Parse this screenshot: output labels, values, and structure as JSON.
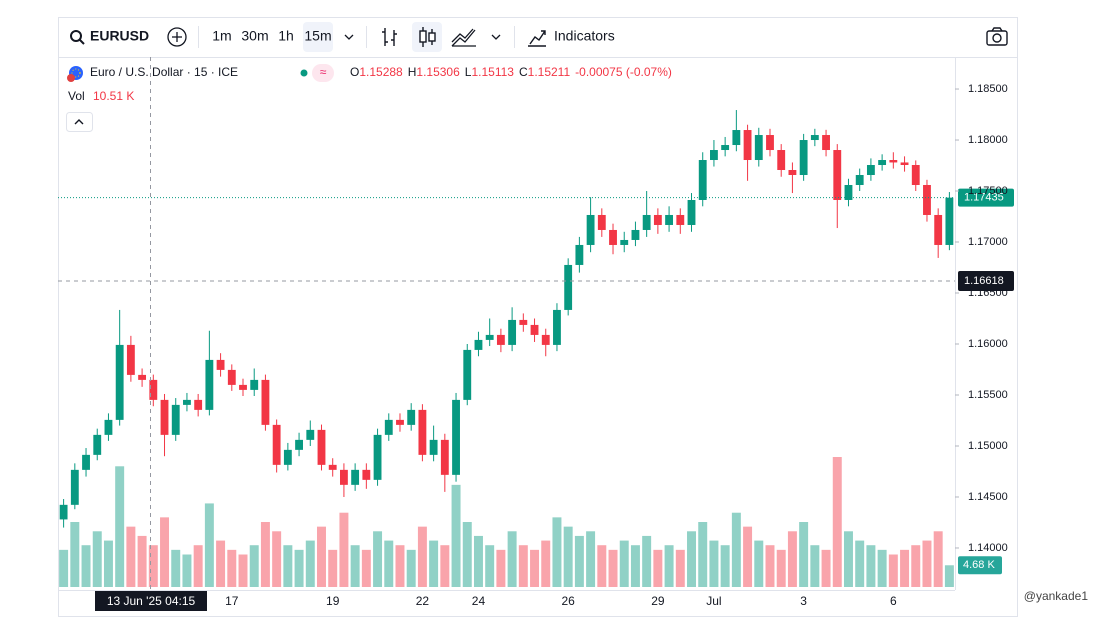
{
  "toolbar": {
    "symbol": "EURUSD",
    "intervals": [
      "1m",
      "30m",
      "1h",
      "15m"
    ],
    "selected_interval": 3,
    "indicators": "Indicators"
  },
  "legend": {
    "title": "Euro / U.S. Dollar · 15 · ICE",
    "ohlc": [
      {
        "label": "O",
        "value": "1.15288"
      },
      {
        "label": "H",
        "value": "1.15306"
      },
      {
        "label": "L",
        "value": "1.15113"
      },
      {
        "label": "C",
        "value": "1.15211"
      }
    ],
    "change": "-0.00075 (-0.07%)",
    "vol_label": "Vol",
    "vol_value": "10.51 K"
  },
  "watermark": "@yankade1",
  "chart_data": {
    "type": "candlestick",
    "up_color": "#089981",
    "down_color": "#f23645",
    "categories": [
      null,
      null,
      null,
      null,
      null,
      null,
      null,
      null,
      null,
      null,
      null,
      null,
      null,
      null,
      null,
      "17",
      null,
      null,
      null,
      null,
      null,
      null,
      null,
      null,
      "19",
      null,
      null,
      null,
      null,
      null,
      null,
      null,
      "22",
      null,
      null,
      null,
      null,
      "24",
      null,
      null,
      null,
      null,
      null,
      null,
      null,
      "26",
      null,
      null,
      null,
      null,
      null,
      null,
      null,
      "29",
      null,
      null,
      null,
      null,
      "Jul",
      null,
      null,
      null,
      null,
      null,
      null,
      null,
      "3",
      null,
      null,
      null,
      null,
      null,
      null,
      null,
      "6",
      null,
      null,
      null,
      null,
      null
    ],
    "open": [
      1.1428,
      1.14423,
      1.14766,
      1.14913,
      1.15109,
      1.15256,
      1.15991,
      1.15697,
      1.15648,
      1.15452,
      1.15109,
      1.15403,
      1.15452,
      1.15354,
      1.15844,
      1.15746,
      1.15599,
      1.1555,
      1.15648,
      1.15207,
      1.14815,
      1.14962,
      1.1506,
      1.15158,
      1.14815,
      1.14766,
      1.14619,
      1.14766,
      1.14668,
      1.15109,
      1.15256,
      1.15207,
      1.15354,
      1.14913,
      1.1506,
      1.14717,
      1.15452,
      1.15942,
      1.1604,
      1.16089,
      1.15991,
      1.16236,
      1.16187,
      1.16089,
      1.15991,
      1.16334,
      1.16775,
      1.16971,
      1.17265,
      1.17118,
      1.16971,
      1.1702,
      1.17118,
      1.17265,
      1.17167,
      1.17265,
      1.17167,
      1.17412,
      1.17804,
      1.17902,
      1.17951,
      1.18098,
      1.17804,
      1.18049,
      1.17902,
      1.17706,
      1.17657,
      1.18,
      1.18049,
      1.17902,
      1.17412,
      1.17559,
      1.17657,
      1.17755,
      1.17804,
      1.1778,
      1.17755,
      1.17559,
      1.17265,
      1.16971
    ],
    "high": [
      1.1448,
      1.1483,
      1.1498,
      1.1517,
      1.1532,
      1.16334,
      1.1608,
      1.1576,
      1.157,
      1.1551,
      1.1547,
      1.1552,
      1.1551,
      1.1613,
      1.1591,
      1.158,
      1.1566,
      1.1576,
      1.157,
      1.1526,
      1.1503,
      1.1513,
      1.1525,
      1.1521,
      1.1488,
      1.1483,
      1.1483,
      1.1483,
      1.1517,
      1.1532,
      1.1532,
      1.1542,
      1.1541,
      1.152,
      1.1512,
      1.1552,
      1.16,
      1.1612,
      1.1625,
      1.1615,
      1.1636,
      1.163,
      1.1625,
      1.1615,
      1.164,
      1.1684,
      1.1705,
      1.1744,
      1.1733,
      1.1718,
      1.171,
      1.172,
      1.175,
      1.1733,
      1.1735,
      1.1733,
      1.1748,
      1.1788,
      1.18,
      1.1803,
      1.18294,
      1.1815,
      1.1812,
      1.1811,
      1.1796,
      1.1778,
      1.1806,
      1.1811,
      1.181,
      1.1796,
      1.1762,
      1.1772,
      1.1782,
      1.1786,
      1.1788,
      1.1784,
      1.178,
      1.1761,
      1.1733,
      1.1749
    ],
    "low": [
      1.142,
      1.1438,
      1.147,
      1.1486,
      1.1505,
      1.152,
      1.1563,
      1.1558,
      1.1539,
      1.149,
      1.1505,
      1.1534,
      1.1529,
      1.153,
      1.1568,
      1.1554,
      1.1549,
      1.1549,
      1.1515,
      1.1474,
      1.1476,
      1.149,
      1.15,
      1.1476,
      1.147,
      1.145,
      1.1456,
      1.1458,
      1.1461,
      1.1505,
      1.1514,
      1.1515,
      1.1485,
      1.1485,
      1.1455,
      1.1465,
      1.154,
      1.1588,
      1.1598,
      1.1592,
      1.1593,
      1.1612,
      1.1602,
      1.1588,
      1.1593,
      1.1628,
      1.167,
      1.169,
      1.1705,
      1.1688,
      1.169,
      1.1696,
      1.1705,
      1.1708,
      1.171,
      1.1708,
      1.171,
      1.1735,
      1.1774,
      1.1784,
      1.1789,
      1.176,
      1.1774,
      1.1784,
      1.1764,
      1.1748,
      1.176,
      1.1794,
      1.1784,
      1.17137,
      1.1735,
      1.175,
      1.176,
      1.177,
      1.1772,
      1.1769,
      1.175,
      1.172,
      1.16844,
      1.1692
    ],
    "close": [
      1.14423,
      1.14766,
      1.14913,
      1.15109,
      1.15256,
      1.15991,
      1.15697,
      1.15648,
      1.15452,
      1.15109,
      1.15403,
      1.15452,
      1.15354,
      1.15844,
      1.15746,
      1.15599,
      1.1555,
      1.15648,
      1.15207,
      1.14815,
      1.14962,
      1.1506,
      1.15158,
      1.14815,
      1.14766,
      1.14619,
      1.14766,
      1.14668,
      1.15109,
      1.15256,
      1.15207,
      1.15354,
      1.14913,
      1.1506,
      1.14717,
      1.15452,
      1.15942,
      1.1604,
      1.16089,
      1.15991,
      1.16236,
      1.16187,
      1.16089,
      1.15991,
      1.16334,
      1.16775,
      1.16971,
      1.17265,
      1.17118,
      1.16971,
      1.1702,
      1.17118,
      1.17265,
      1.17167,
      1.17265,
      1.17167,
      1.17412,
      1.17804,
      1.17902,
      1.17951,
      1.18098,
      1.17804,
      1.18049,
      1.17902,
      1.17706,
      1.17657,
      1.18,
      1.18049,
      1.17902,
      1.17412,
      1.17559,
      1.17657,
      1.17755,
      1.17804,
      1.1778,
      1.17755,
      1.17559,
      1.17265,
      1.16971,
      1.17435
    ],
    "volume": [
      8,
      14,
      9,
      12,
      10,
      26,
      13,
      11,
      9,
      15,
      8,
      7,
      9,
      18,
      10,
      8,
      7,
      9,
      14,
      12,
      9,
      8,
      10,
      13,
      8,
      16,
      9,
      8,
      12,
      10,
      9,
      8,
      13,
      10,
      9,
      22,
      14,
      11,
      9,
      8,
      12,
      9,
      8,
      10,
      15,
      13,
      11,
      12,
      9,
      8,
      10,
      9,
      11,
      8,
      9,
      8,
      12,
      14,
      10,
      9,
      16,
      13,
      10,
      9,
      8,
      12,
      14,
      9,
      8,
      28,
      12,
      10,
      9,
      8,
      7,
      8,
      9,
      10,
      12,
      4.68
    ],
    "volume_badge": "4.68 K",
    "ylim": [
      1.13588,
      1.18814
    ],
    "yticks": [
      {
        "value": 1.14,
        "label": "1.14000"
      },
      {
        "value": 1.145,
        "label": "1.14500"
      },
      {
        "value": 1.15,
        "label": "1.15000"
      },
      {
        "value": 1.155,
        "label": "1.15500"
      },
      {
        "value": 1.16,
        "label": "1.16000"
      },
      {
        "value": 1.165,
        "label": "1.16500"
      },
      {
        "value": 1.17,
        "label": "1.17000"
      },
      {
        "value": 1.175,
        "label": "1.17500"
      },
      {
        "value": 1.18,
        "label": "1.18000"
      },
      {
        "value": 1.185,
        "label": "1.18500"
      }
    ],
    "last_price": {
      "value": 1.17435,
      "label": "1.17435"
    },
    "crosshair": {
      "price": {
        "value": 1.16618,
        "label": "1.16618"
      },
      "time_label": "13 Jun '25  04:15"
    }
  }
}
